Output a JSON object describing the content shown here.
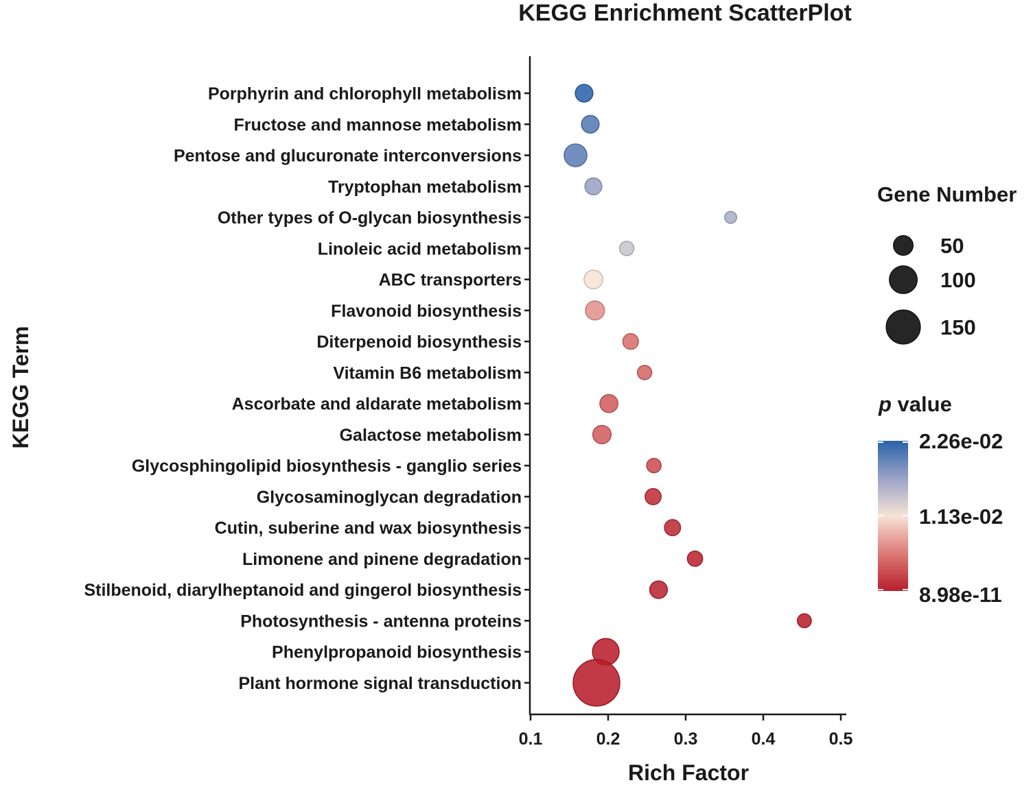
{
  "chart_data": {
    "type": "scatter",
    "title": "KEGG Enrichment ScatterPlot",
    "xlabel": "Rich Factor",
    "ylabel": "KEGG Term",
    "xlim": [
      0.1,
      0.51
    ],
    "xticks": [
      0.1,
      0.2,
      0.3,
      0.4,
      0.5
    ],
    "xtick_labels": [
      "0.1",
      "0.2",
      "0.3",
      "0.4",
      "0.5"
    ],
    "size_legend": {
      "title": "Gene Number",
      "values": [
        50,
        100,
        150
      ],
      "labels": [
        "50",
        "100",
        "150"
      ]
    },
    "color_legend": {
      "title_italic": "p",
      "title_rest": " value",
      "labels": [
        "2.26e-02",
        "1.13e-02",
        "8.98e-11"
      ],
      "max": 0.0226,
      "mid": 0.0113,
      "min": 8.98e-11,
      "color_high": "#2a62aa",
      "color_mid": "#f7e3d6",
      "color_low": "#b81f2c"
    },
    "points": [
      {
        "term": "Porphyrin and chlorophyll metabolism",
        "rich_factor": 0.169,
        "gene_number": 24,
        "p_value": 0.0224
      },
      {
        "term": "Fructose and mannose metabolism",
        "rich_factor": 0.177,
        "gene_number": 24,
        "p_value": 0.0205
      },
      {
        "term": "Pentose and glucuronate interconversions",
        "rich_factor": 0.158,
        "gene_number": 40,
        "p_value": 0.02
      },
      {
        "term": "Tryptophan metabolism",
        "rich_factor": 0.181,
        "gene_number": 22,
        "p_value": 0.017
      },
      {
        "term": "Other types of O-glycan biosynthesis",
        "rich_factor": 0.358,
        "gene_number": 11,
        "p_value": 0.016
      },
      {
        "term": "Linoleic acid metabolism",
        "rich_factor": 0.224,
        "gene_number": 16,
        "p_value": 0.014
      },
      {
        "term": "ABC transporters",
        "rich_factor": 0.181,
        "gene_number": 27,
        "p_value": 0.0113
      },
      {
        "term": "Flavonoid biosynthesis",
        "rich_factor": 0.183,
        "gene_number": 28,
        "p_value": 0.007
      },
      {
        "term": "Diterpenoid biosynthesis",
        "rich_factor": 0.229,
        "gene_number": 19,
        "p_value": 0.005
      },
      {
        "term": "Vitamin B6 metabolism",
        "rich_factor": 0.247,
        "gene_number": 16,
        "p_value": 0.0045
      },
      {
        "term": "Ascorbate and aldarate metabolism",
        "rich_factor": 0.201,
        "gene_number": 25,
        "p_value": 0.004
      },
      {
        "term": "Galactose metabolism",
        "rich_factor": 0.192,
        "gene_number": 26,
        "p_value": 0.004
      },
      {
        "term": "Glycosphingolipid biosynthesis - ganglio series",
        "rich_factor": 0.259,
        "gene_number": 16,
        "p_value": 0.003
      },
      {
        "term": "Glycosaminoglycan degradation",
        "rich_factor": 0.258,
        "gene_number": 20,
        "p_value": 0.001
      },
      {
        "term": "Cutin, suberine and wax biosynthesis",
        "rich_factor": 0.283,
        "gene_number": 20,
        "p_value": 0.0008
      },
      {
        "term": "Limonene and pinene degradation",
        "rich_factor": 0.312,
        "gene_number": 18,
        "p_value": 0.0004
      },
      {
        "term": "Stilbenoid, diarylheptanoid and gingerol biosynthesis",
        "rich_factor": 0.265,
        "gene_number": 24,
        "p_value": 0.0005
      },
      {
        "term": "Photosynthesis - antenna proteins",
        "rich_factor": 0.453,
        "gene_number": 15,
        "p_value": 0.0001
      },
      {
        "term": "Phenylpropanoid biosynthesis",
        "rich_factor": 0.197,
        "gene_number": 55,
        "p_value": 1e-05
      },
      {
        "term": "Plant hormone signal transduction",
        "rich_factor": 0.185,
        "gene_number": 168,
        "p_value": 8.98e-11
      }
    ]
  }
}
